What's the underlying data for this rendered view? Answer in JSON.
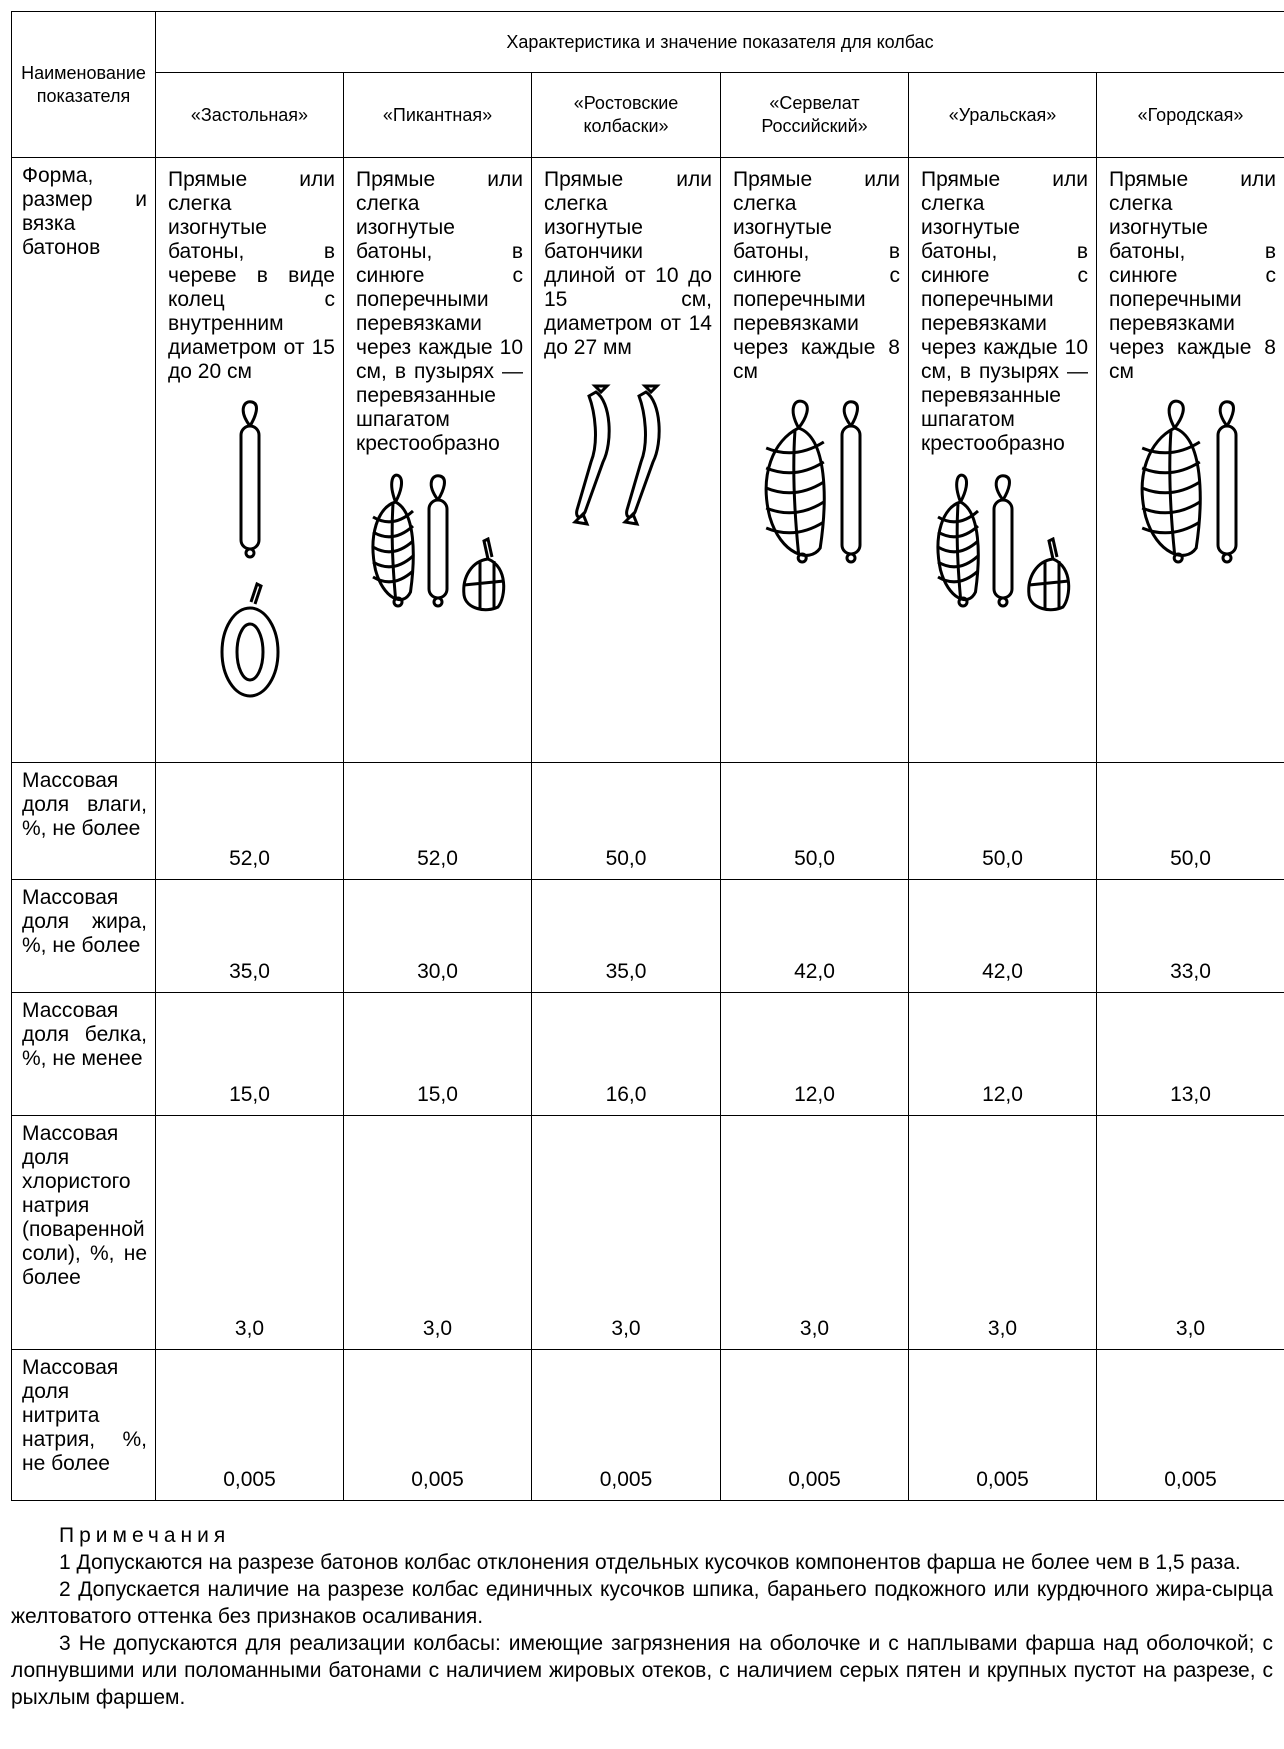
{
  "header": {
    "param_label": "Наименование показателя",
    "group_label": "Характеристика и значение показателя для колбас",
    "products": [
      "«Застольная»",
      "«Пикантная»",
      "«Ростовские колбаски»",
      "«Сервелат Российский»",
      "«Уральская»",
      "«Городская»"
    ]
  },
  "rows": [
    {
      "label": "Форма, размер и вязка батонов",
      "cells": [
        "Прямые или слегка изогнутые батоны, в череве в виде колец с внутренним диаметром от 15 до 20 см",
        "Прямые или слегка изогнутые батоны, в синюге с поперечными перевязками через каждые 10 см, в пузырях — перевязанные шпагатом крестообразно",
        "Прямые или слегка изогнутые батончики длиной от 10 до 15 см, диаметром от 14 до 27 мм",
        "Прямые или слегка изогнутые батоны, в синюге с поперечными перевязками через каждые 8 см",
        "Прямые или слегка изогнутые батоны, в синюге с поперечными перевязками через каждые 10 см, в пузырях — перевязанные шпагатом крестообразно",
        "Прямые или слегка изогнутые батоны, в синюге с поперечными перевязками через каждые 8 см"
      ]
    },
    {
      "label": "Массовая доля влаги, %, не более",
      "cells": [
        "52,0",
        "52,0",
        "50,0",
        "50,0",
        "50,0",
        "50,0"
      ]
    },
    {
      "label": "Массовая доля жира, %, не более",
      "cells": [
        "35,0",
        "30,0",
        "35,0",
        "42,0",
        "42,0",
        "33,0"
      ]
    },
    {
      "label": "Массовая доля белка, %, не менее",
      "cells": [
        "15,0",
        "15,0",
        "16,0",
        "12,0",
        "12,0",
        "13,0"
      ]
    },
    {
      "label": "Массовая доля хлористого натрия (поваренной соли), %, не более",
      "cells": [
        "3,0",
        "3,0",
        "3,0",
        "3,0",
        "3,0",
        "3,0"
      ]
    },
    {
      "label": "Массовая доля нитрита натрия, %, не более",
      "cells": [
        "0,005",
        "0,005",
        "0,005",
        "0,005",
        "0,005",
        "0,005"
      ]
    }
  ],
  "notes": {
    "title": "Примечания",
    "items": [
      "1 Допускаются на разрезе батонов колбас отклонения отдельных кусочков компонентов фарша не более чем в 1,5 раза.",
      "2 Допускается наличие на разрезе колбас единичных кусочков шпика, бараньего подкожного или курдючного жира-сырца желтоватого оттенка без признаков осаливания.",
      "3 Не допускаются для реализации колбасы: имеющие загрязнения на оболочке и с наплывами фарша над оболочкой; с лопнувшими или поломанными батонами с наличием жировых отеков, с наличием серых пятен и крупных пустот на разрезе, с рыхлым фаршем."
    ]
  }
}
